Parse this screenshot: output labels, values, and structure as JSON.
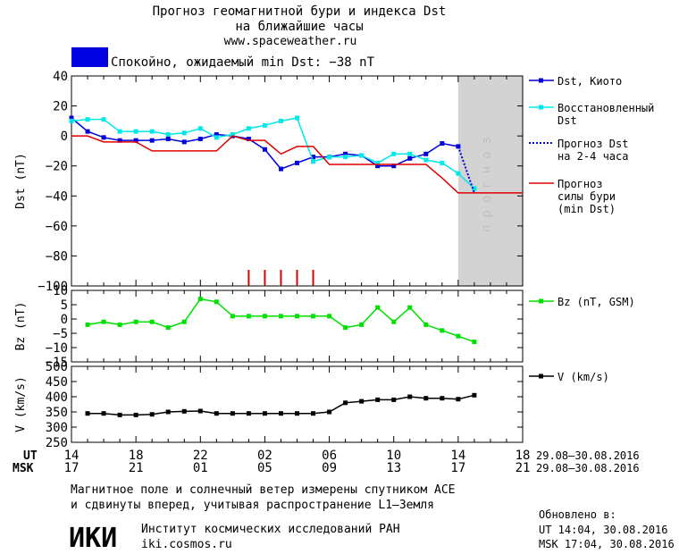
{
  "header": {
    "title_line1": "Прогноз геомагнитной бури и индекса Dst",
    "title_line2": "на ближайшие часы",
    "website": "www.spaceweather.ru",
    "status_text": "Спокойно, ожидаемый min Dst: −38 nT",
    "status_color": "#0000e0"
  },
  "chart_data": [
    {
      "type": "line",
      "name": "dst-panel",
      "ylabel": "Dst (nT)",
      "ylim": [
        -100,
        40
      ],
      "yticks": [
        "40",
        "20",
        "0",
        "−20",
        "−40",
        "−60",
        "−80",
        "−100"
      ],
      "ytick_values": [
        40,
        20,
        0,
        -20,
        -40,
        -60,
        -80,
        -100
      ],
      "xlim": [
        14,
        42
      ],
      "forecast_region": {
        "x_from": 38.0,
        "x_to": 42,
        "label": "прогноз",
        "color": "#d3d3d3"
      },
      "series": [
        {
          "name": "Dst, Киото",
          "color": "#0000dd",
          "x": [
            14,
            15,
            16,
            17,
            18,
            19,
            20,
            21,
            22,
            23,
            24,
            25,
            26,
            27,
            28,
            29,
            30,
            31,
            32,
            33,
            34,
            35,
            36,
            37,
            38
          ],
          "y": [
            12,
            3,
            -1,
            -3,
            -3,
            -3,
            -2,
            -4,
            -2,
            1,
            0,
            -2,
            -9,
            -22,
            -18,
            -14,
            -14,
            -12,
            -13,
            -20,
            -20,
            -15,
            -12,
            -5,
            -7
          ]
        },
        {
          "name": "Восстановленный Dst",
          "color": "#00e8e8",
          "x": [
            14,
            15,
            16,
            17,
            18,
            19,
            20,
            21,
            22,
            23,
            24,
            25,
            26,
            27,
            28,
            29,
            30,
            31,
            32,
            33,
            34,
            35,
            36,
            37,
            38,
            39
          ],
          "y": [
            10,
            11,
            11,
            3,
            3,
            3,
            1,
            2,
            5,
            -1,
            1,
            5,
            7,
            10,
            12,
            -17,
            -14,
            -14,
            -13,
            -18,
            -12,
            -12,
            -16,
            -18,
            -25,
            -35
          ]
        },
        {
          "name": "Прогноз Dst на 2-4 часа",
          "color": "#0000dd",
          "dash": true,
          "x": [
            38,
            39
          ],
          "y": [
            -7,
            -38
          ]
        },
        {
          "name": "Прогноз силы бури (min Dst)",
          "color": "#e00000",
          "x": [
            14,
            15,
            16,
            17,
            18,
            19,
            20,
            21,
            22,
            23,
            24,
            25,
            26,
            27,
            28,
            29,
            30,
            31,
            32,
            33,
            34,
            35,
            36,
            37,
            38,
            40,
            42
          ],
          "y": [
            0,
            0,
            -4,
            -4,
            -4,
            -10,
            -10,
            -10,
            -10,
            -10,
            0,
            -3,
            -3,
            -12,
            -7,
            -7,
            -19,
            -19,
            -19,
            -19,
            -19,
            -19,
            -19,
            -28,
            -38,
            -38,
            -38
          ]
        }
      ],
      "legend": {
        "placement": "right",
        "entries": [
          {
            "line1": "Dst, Киото",
            "line2": "",
            "line3": ""
          },
          {
            "line1": "Восстановленный",
            "line2": "Dst",
            "line3": ""
          },
          {
            "line1": "Прогноз Dst",
            "line2": "на 2-4 часа",
            "line3": ""
          },
          {
            "line1": "Прогноз",
            "line2": "силы бури",
            "line3": "(min Dst)"
          }
        ]
      },
      "markers": {
        "color": "#e00000",
        "x": [
          25,
          26,
          27,
          28,
          29
        ]
      }
    },
    {
      "type": "line",
      "name": "bz-panel",
      "ylabel": "Bz (nT)",
      "ylim": [
        -15,
        10
      ],
      "yticks": [
        "10",
        "5",
        "0",
        "−5",
        "−10",
        "−15"
      ],
      "ytick_values": [
        10,
        5,
        0,
        -5,
        -10,
        -15
      ],
      "xlim": [
        14,
        42
      ],
      "series": [
        {
          "name": "Bz (nT, GSM)",
          "color": "#00e000",
          "x": [
            15,
            16,
            17,
            18,
            19,
            20,
            21,
            22,
            23,
            24,
            25,
            26,
            27,
            28,
            29,
            30,
            31,
            32,
            33,
            34,
            35,
            36,
            37,
            38,
            39
          ],
          "y": [
            -2,
            -1,
            -2,
            -1,
            -1,
            -3,
            -1,
            7,
            6,
            1,
            1,
            1,
            1,
            1,
            1,
            1,
            -3,
            -2,
            4,
            -1,
            4,
            -2,
            -4,
            -6,
            -8
          ]
        }
      ],
      "legend": {
        "placement": "right",
        "entries": [
          {
            "line1": "Bz (nT, GSM)"
          }
        ]
      }
    },
    {
      "type": "line",
      "name": "v-panel",
      "ylabel": "V (km/s)",
      "ylim": [
        250,
        500
      ],
      "yticks": [
        "500",
        "450",
        "400",
        "350",
        "300",
        "250"
      ],
      "ytick_values": [
        500,
        450,
        400,
        350,
        300,
        250
      ],
      "xlim": [
        14,
        42
      ],
      "series": [
        {
          "name": "V (km/s)",
          "color": "#000000",
          "x": [
            15,
            16,
            17,
            18,
            19,
            20,
            21,
            22,
            23,
            24,
            25,
            26,
            27,
            28,
            29,
            30,
            31,
            32,
            33,
            34,
            35,
            36,
            37,
            38,
            39
          ],
          "y": [
            345,
            345,
            340,
            340,
            342,
            350,
            352,
            353,
            345,
            345,
            345,
            345,
            345,
            345,
            345,
            350,
            380,
            385,
            390,
            390,
            400,
            395,
            395,
            392,
            405
          ]
        }
      ],
      "legend": {
        "placement": "right",
        "entries": [
          {
            "line1": "V (km/s)"
          }
        ]
      }
    }
  ],
  "time_axis": {
    "ut_label": "UT",
    "msk_label": "MSK",
    "ut_ticks": [
      "14",
      "18",
      "22",
      "02",
      "06",
      "10",
      "14",
      "18"
    ],
    "msk_ticks": [
      "17",
      "21",
      "01",
      "05",
      "09",
      "13",
      "17",
      "21"
    ],
    "tick_values": [
      14,
      18,
      22,
      26,
      30,
      34,
      38,
      42
    ],
    "date_range_ut": "29.08–30.08.2016",
    "date_range_msk": "29.08–30.08.2016"
  },
  "footer": {
    "note_line1": "Магнитное поле и солнечный ветер измерены спутником ACE",
    "note_line2": "и сдвинуты вперед, учитывая распространение L1–Земля",
    "logo_text": "ИКИ",
    "institute": "Институт космических исследований РАН",
    "institute_url": "iki.cosmos.ru",
    "updated_label": "Обновлено в:",
    "updated_ut": "UT  14:04, 30.08.2016",
    "updated_msk": "MSK 17:04, 30.08.2016"
  }
}
